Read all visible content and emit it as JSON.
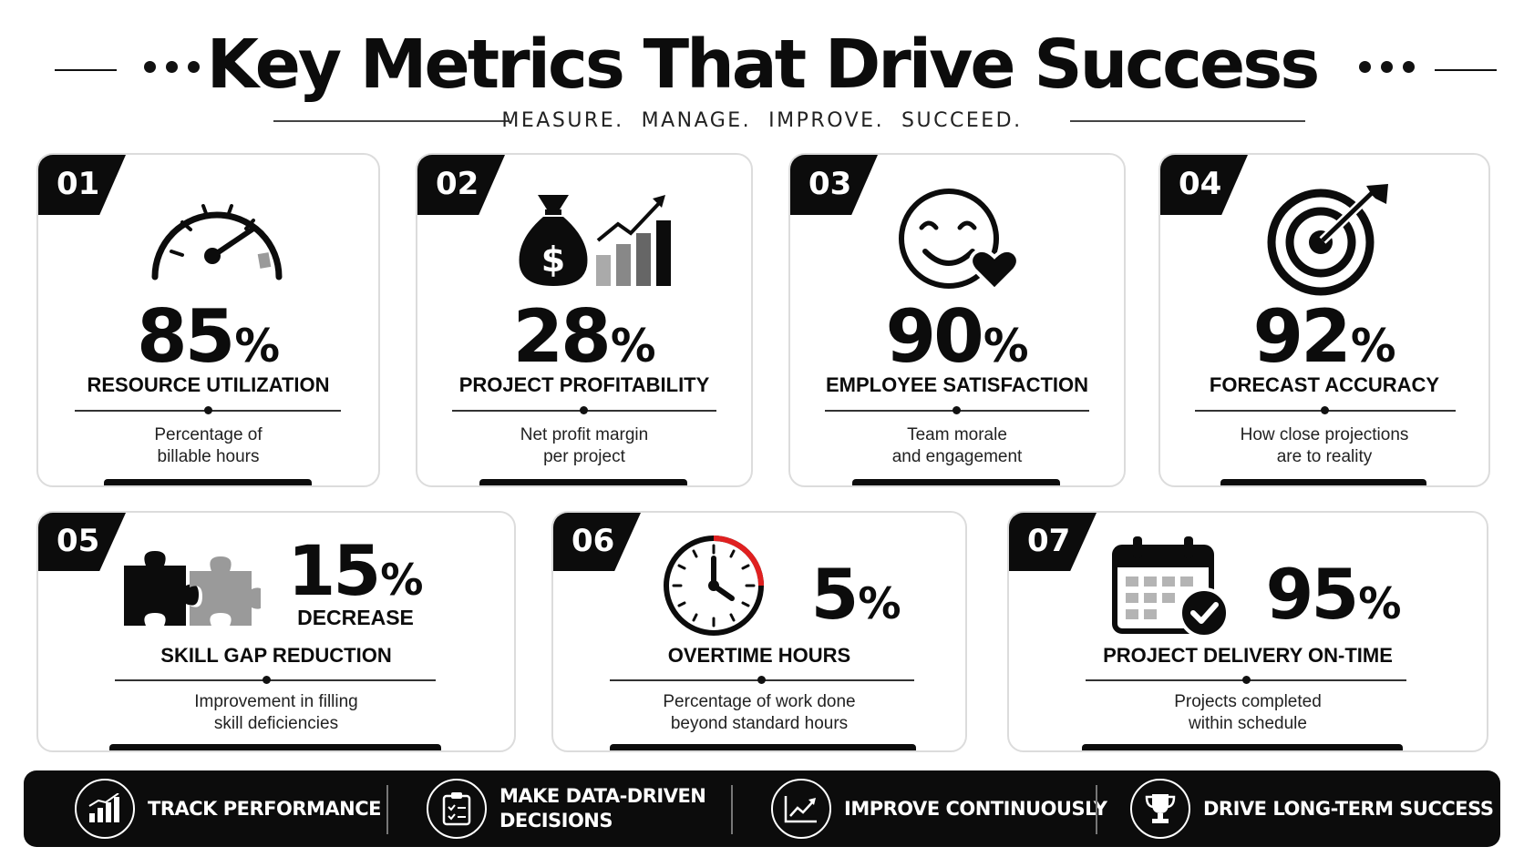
{
  "header": {
    "title": "Key Metrics That Drive Success",
    "subtitle": "MEASURE.  MANAGE.  IMPROVE.  SUCCEED."
  },
  "metrics": [
    {
      "num": "01",
      "value": "85",
      "unit": "%",
      "name": "RESOURCE UTILIZATION",
      "desc": [
        "Percentage of",
        "billable hours"
      ],
      "icon": "speedometer-icon"
    },
    {
      "num": "02",
      "value": "28",
      "unit": "%",
      "name": "PROJECT PROFITABILITY",
      "desc": [
        "Net profit margin",
        "per project"
      ],
      "icon": "money-bag-chart-icon"
    },
    {
      "num": "03",
      "value": "90",
      "unit": "%",
      "name": "EMPLOYEE SATISFACTION",
      "desc": [
        "Team morale",
        "and engagement"
      ],
      "icon": "smiley-heart-icon"
    },
    {
      "num": "04",
      "value": "92",
      "unit": "%",
      "name": "FORECAST ACCURACY",
      "desc": [
        "How close projections",
        "are to reality"
      ],
      "icon": "target-arrow-icon"
    },
    {
      "num": "05",
      "value": "15",
      "unit": "%",
      "extra": "DECREASE",
      "name": "SKILL GAP REDUCTION",
      "desc": [
        "Improvement in filling",
        "skill deficiencies"
      ],
      "icon": "puzzle-icon"
    },
    {
      "num": "06",
      "value": "5",
      "unit": "%",
      "name": "OVERTIME HOURS",
      "desc": [
        "Percentage of work done",
        "beyond standard hours"
      ],
      "icon": "clock-icon"
    },
    {
      "num": "07",
      "value": "95",
      "unit": "%",
      "name": "PROJECT DELIVERY ON-TIME",
      "desc": [
        "Projects completed",
        "within schedule"
      ],
      "icon": "calendar-check-icon"
    }
  ],
  "footer": [
    {
      "label": [
        "TRACK PERFORMANCE"
      ],
      "icon": "bar-chart-icon"
    },
    {
      "label": [
        "MAKE DATA-DRIVEN",
        "DECISIONS"
      ],
      "icon": "clipboard-check-icon"
    },
    {
      "label": [
        "IMPROVE CONTINUOUSLY"
      ],
      "icon": "trend-up-icon"
    },
    {
      "label": [
        "DRIVE LONG-TERM SUCCESS"
      ],
      "icon": "trophy-icon"
    }
  ],
  "colors": {
    "primary": "#0c0c0c",
    "accent_red": "#e02020",
    "gray": "#9a9a9a"
  }
}
